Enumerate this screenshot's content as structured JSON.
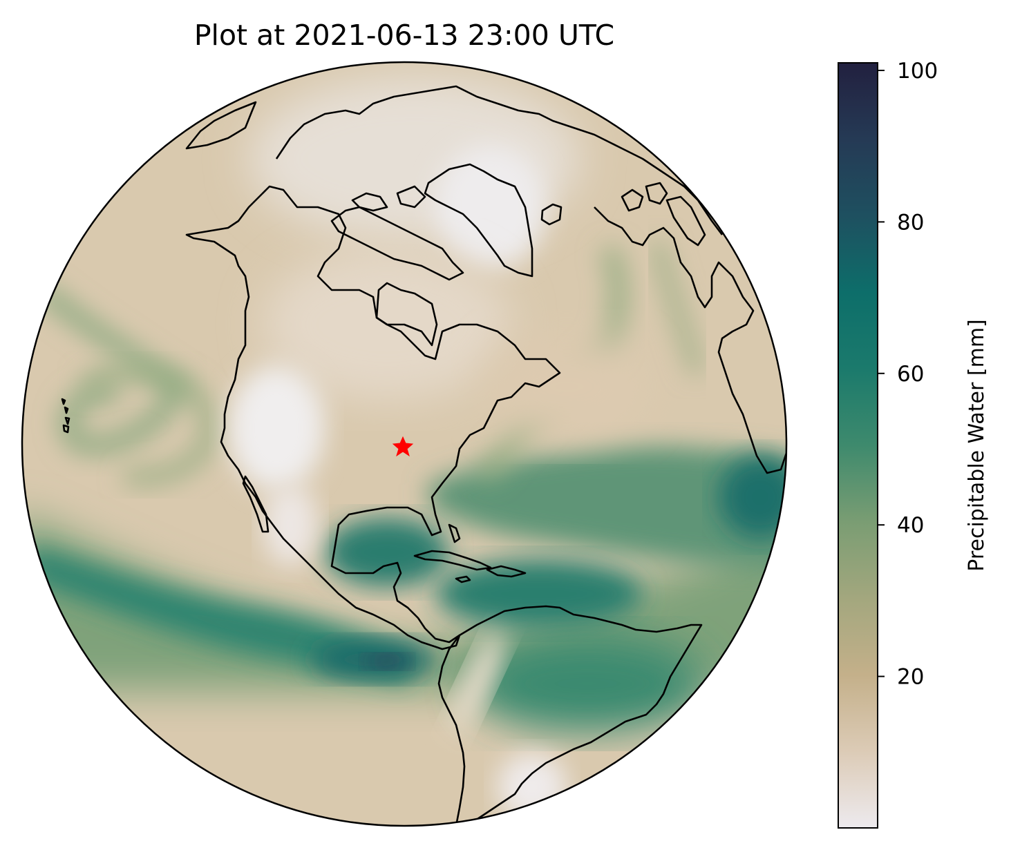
{
  "title": "Plot at 2021-06-13 23:00 UTC",
  "colorbar": {
    "label": "Precipitable Water [mm]",
    "min": 0,
    "max": 101,
    "ticks": [
      "20",
      "40",
      "60",
      "80",
      "100"
    ],
    "tick_values": [
      20,
      40,
      60,
      80,
      100
    ]
  },
  "map": {
    "projection": "orthographic",
    "marker_symbol": "star",
    "marker_color": "#ff0000",
    "coastline_color": "#000000"
  },
  "colors": {
    "stop_0": "#edeaee",
    "stop_10": "#dccbb6",
    "stop_20": "#c4b08a",
    "stop_30": "#a3a77e",
    "stop_40": "#7a9d73",
    "stop_50": "#3e8a6d",
    "stop_60": "#1b7a6c",
    "stop_70": "#0d6e6a",
    "stop_80": "#1e5060",
    "stop_90": "#253a55",
    "stop_100": "#22203f"
  }
}
